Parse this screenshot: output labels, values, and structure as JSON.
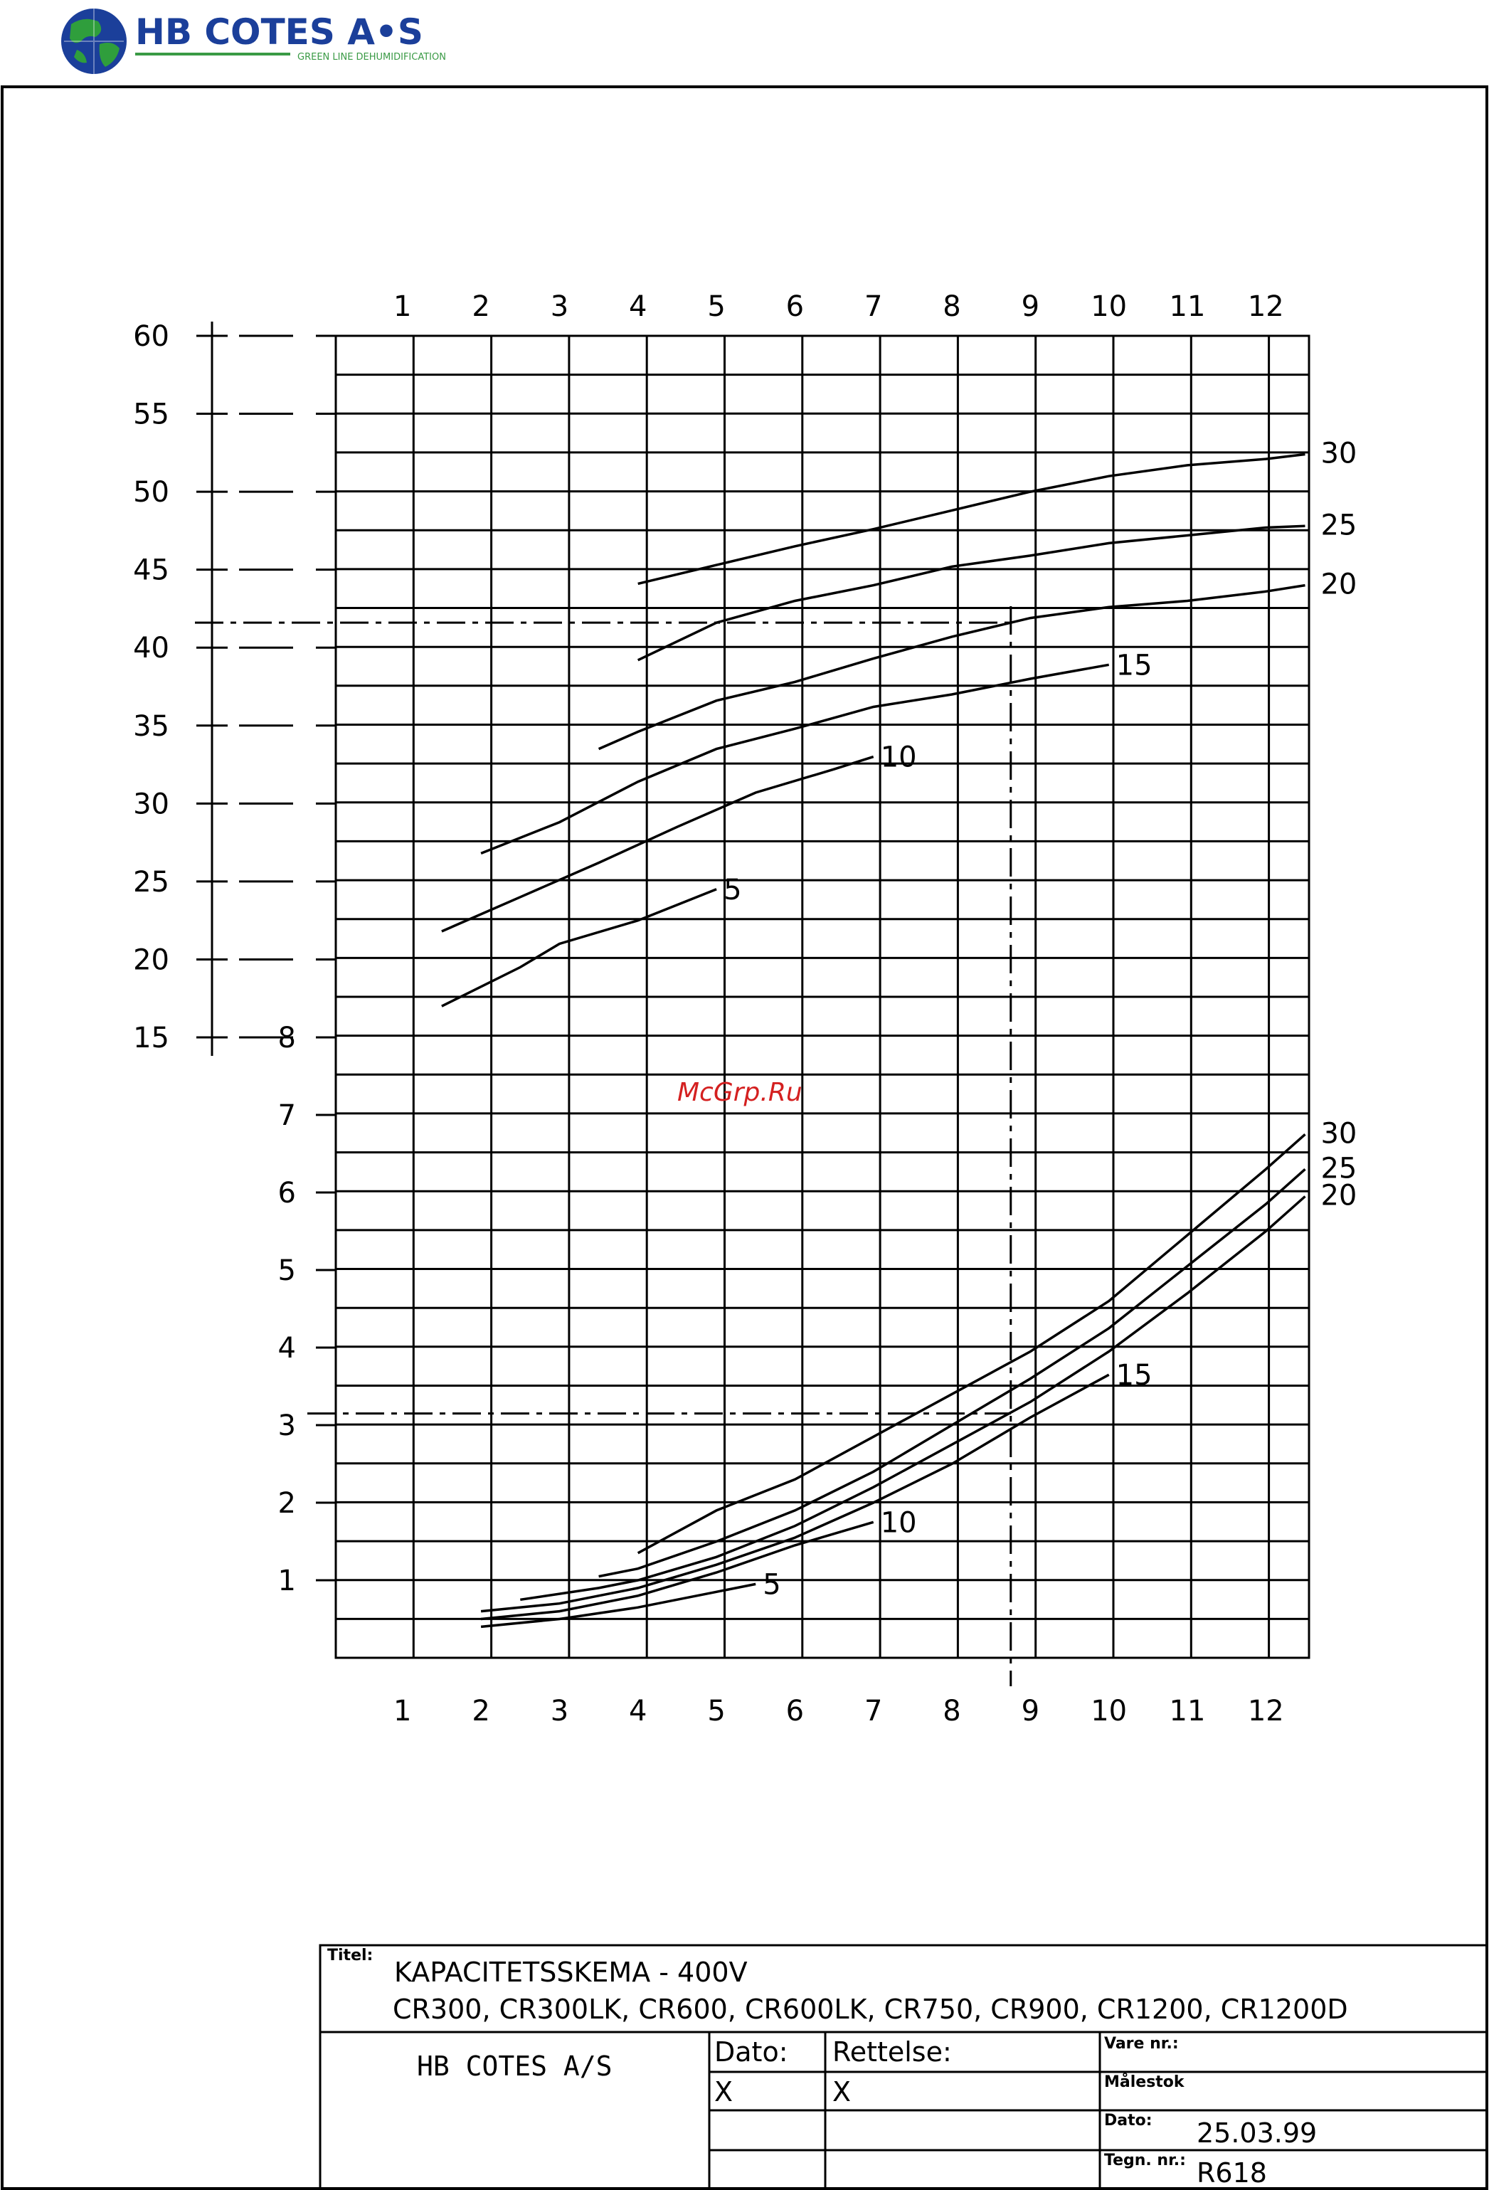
{
  "logo": {
    "company": "HB COTES A•S",
    "tagline": "GREEN LINE DEHUMIDIFICATION",
    "icon": "globe-icon",
    "colors": {
      "globe_blue": "#1b3f9a",
      "globe_green": "#2f9e3c",
      "text_blue": "#1b3f9a",
      "tagline_green": "#3a9a45"
    }
  },
  "watermark": "McGrp.Ru",
  "title_block": {
    "titel_label": "Titel:",
    "title_line1": "KAPACITETSSKEMA   -   400V",
    "title_line2": "CR300, CR300LK, CR600, CR600LK, CR750, CR900, CR1200, CR1200D",
    "company": "HB COTES A/S",
    "dato_label": "Dato:",
    "dato_value": "X",
    "rettelse_label": "Rettelse:",
    "rettelse_value": "X",
    "vare_label": "Vare nr.:",
    "malestok_label": "Målestok",
    "dato2_label": "Dato:",
    "dato2_value": "25.03.99",
    "tegn_label": "Tegn. nr.:",
    "tegn_value": "R618"
  },
  "chart_data": [
    {
      "type": "line",
      "panel": "upper",
      "x_ticks": [
        "1",
        "2",
        "3",
        "4",
        "5",
        "6",
        "7",
        "8",
        "9",
        "10",
        "11",
        "12"
      ],
      "y_ticks": [
        "60",
        "55",
        "50",
        "45",
        "40",
        "35",
        "30",
        "25",
        "20",
        "15"
      ],
      "xlim": [
        0.15,
        12.55
      ],
      "ylim": [
        15,
        60
      ],
      "grid": true,
      "series": [
        {
          "name": "5",
          "x": [
            1.5,
            2.5,
            3.0,
            4.0,
            5.0
          ],
          "y": [
            17.0,
            19.5,
            21.0,
            22.5,
            24.5
          ]
        },
        {
          "name": "10",
          "x": [
            1.5,
            2.5,
            3.5,
            4.5,
            5.5,
            6.5,
            7.0
          ],
          "y": [
            21.8,
            24.0,
            26.2,
            28.5,
            30.7,
            32.2,
            33.0
          ]
        },
        {
          "name": "15",
          "x": [
            2.0,
            3.0,
            4.0,
            5.0,
            6.0,
            7.0,
            8.0,
            9.0,
            10.0
          ],
          "y": [
            26.8,
            28.8,
            31.4,
            33.5,
            34.8,
            36.2,
            37.0,
            38.0,
            38.9
          ]
        },
        {
          "name": "20",
          "x": [
            3.5,
            4.0,
            5.0,
            6.0,
            7.0,
            8.0,
            9.0,
            10.0,
            11.0,
            12.0,
            12.5
          ],
          "y": [
            33.5,
            34.6,
            36.6,
            37.8,
            39.3,
            40.7,
            41.9,
            42.6,
            43.0,
            43.6,
            44.0
          ]
        },
        {
          "name": "25",
          "x": [
            4.0,
            5.0,
            6.0,
            7.0,
            8.0,
            9.0,
            10.0,
            11.0,
            12.0,
            12.5
          ],
          "y": [
            39.2,
            41.6,
            43.0,
            44.0,
            45.2,
            45.9,
            46.7,
            47.2,
            47.7,
            47.8
          ]
        },
        {
          "name": "30",
          "x": [
            4.0,
            5.0,
            6.0,
            7.0,
            8.0,
            9.0,
            10.0,
            11.0,
            12.0,
            12.5
          ],
          "y": [
            44.1,
            45.3,
            46.5,
            47.6,
            48.8,
            50.0,
            51.0,
            51.7,
            52.1,
            52.4
          ]
        }
      ],
      "reference": {
        "x": 8.75,
        "y": 41.6
      }
    },
    {
      "type": "line",
      "panel": "lower",
      "x_ticks": [
        "1",
        "2",
        "3",
        "4",
        "5",
        "6",
        "7",
        "8",
        "9",
        "10",
        "11",
        "12"
      ],
      "y_ticks": [
        "8",
        "7",
        "6",
        "5",
        "4",
        "3",
        "2",
        "1"
      ],
      "xlim": [
        0.15,
        12.55
      ],
      "ylim": [
        0,
        8
      ],
      "grid": true,
      "series": [
        {
          "name": "5",
          "x": [
            2.0,
            3.0,
            4.0,
            5.0,
            5.5
          ],
          "y": [
            0.4,
            0.5,
            0.65,
            0.85,
            0.95
          ]
        },
        {
          "name": "10",
          "x": [
            2.0,
            3.0,
            4.0,
            5.0,
            6.0,
            7.0
          ],
          "y": [
            0.5,
            0.6,
            0.8,
            1.1,
            1.45,
            1.75
          ]
        },
        {
          "name": "15",
          "x": [
            2.0,
            3.0,
            4.0,
            5.0,
            6.0,
            7.0,
            8.0,
            9.0,
            10.0
          ],
          "y": [
            0.6,
            0.7,
            0.9,
            1.2,
            1.55,
            2.0,
            2.5,
            3.1,
            3.65
          ]
        },
        {
          "name": "20",
          "x": [
            2.5,
            3.5,
            4.0,
            5.0,
            6.0,
            7.0,
            8.0,
            9.0,
            10.0,
            11.0,
            12.0,
            12.5
          ],
          "y": [
            0.75,
            0.9,
            1.0,
            1.3,
            1.7,
            2.2,
            2.75,
            3.3,
            3.95,
            4.7,
            5.5,
            5.95
          ]
        },
        {
          "name": "25",
          "x": [
            3.5,
            4.0,
            5.0,
            6.0,
            7.0,
            8.0,
            9.0,
            10.0,
            11.0,
            12.0,
            12.5
          ],
          "y": [
            1.05,
            1.15,
            1.5,
            1.9,
            2.4,
            3.0,
            3.6,
            4.25,
            5.05,
            5.85,
            6.3
          ]
        },
        {
          "name": "30",
          "x": [
            4.0,
            5.0,
            6.0,
            7.0,
            8.0,
            9.0,
            10.0,
            11.0,
            12.0,
            12.5
          ],
          "y": [
            1.35,
            1.9,
            2.3,
            2.85,
            3.4,
            3.95,
            4.6,
            5.45,
            6.3,
            6.75
          ]
        }
      ],
      "reference": {
        "x": 8.75,
        "y": 3.15
      }
    }
  ]
}
